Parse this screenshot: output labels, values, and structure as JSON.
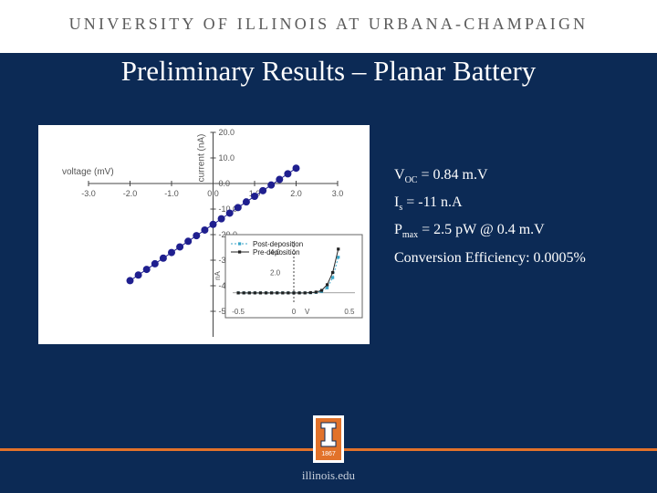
{
  "header": {
    "university": "UNIVERSITY OF ILLINOIS AT URBANA-CHAMPAIGN"
  },
  "slide": {
    "title": "Preliminary Results – Planar Battery"
  },
  "results": {
    "voc": {
      "symbol": "V",
      "sub": "OC",
      "text": " = 0.84 m.V"
    },
    "is": {
      "symbol": "I",
      "sub": "s",
      "text": " = -11 n.A"
    },
    "pmax": {
      "symbol": "P",
      "sub": "max",
      "text": " = 2.5 pW @ 0.4 m.V"
    },
    "efficiency": "Conversion Efficiency: 0.0005%"
  },
  "footer": {
    "site": "illinois.edu",
    "seal_year": "1867"
  },
  "colors": {
    "navy": "#0c2a55",
    "orange": "#e2722a",
    "series_marker": "#1f1f8f"
  },
  "chart_data": [
    {
      "type": "scatter",
      "xlabel": "voltage (mV)",
      "ylabel": "current (nA)",
      "xlim": [
        -3.0,
        3.0
      ],
      "ylim": [
        -60.0,
        20.0
      ],
      "xticks": [
        "-3.0",
        "-2.0",
        "-1.0",
        "0.0",
        "1.0",
        "2.0",
        "3.0"
      ],
      "yticks": [
        "20.0",
        "10.0",
        "0.0",
        "-10.0",
        "-20.0",
        "-30.0",
        "-40.0",
        "-50.0"
      ],
      "series": [
        {
          "x": [
            -2.0,
            -1.8,
            -1.6,
            -1.4,
            -1.2,
            -1.0,
            -0.8,
            -0.6,
            -0.4,
            -0.2,
            0.0,
            0.2,
            0.4,
            0.6,
            0.8,
            1.0,
            1.2,
            1.4,
            1.6,
            1.8,
            2.0
          ],
          "y": [
            -38.0,
            -35.8,
            -33.6,
            -31.4,
            -29.2,
            -27.0,
            -24.8,
            -22.6,
            -20.4,
            -18.2,
            -16.0,
            -13.8,
            -11.6,
            -9.4,
            -7.2,
            -5.0,
            -2.8,
            -0.6,
            1.6,
            3.8,
            6.0
          ]
        }
      ]
    },
    {
      "type": "line",
      "ylabel": "nA",
      "xlabel": "V",
      "xlim": [
        -0.55,
        0.55
      ],
      "ylim": [
        -1.0,
        5.0
      ],
      "xticks": [
        "-0.5",
        "0",
        "0.5"
      ],
      "yticks": [
        "4.0",
        "2.0"
      ],
      "legend": "top-left",
      "series": [
        {
          "name": "Post-deposition",
          "x": [
            -0.5,
            -0.45,
            -0.4,
            -0.35,
            -0.3,
            -0.25,
            -0.2,
            -0.15,
            -0.1,
            -0.05,
            0.0,
            0.05,
            0.1,
            0.15,
            0.2,
            0.25,
            0.3,
            0.35,
            0.4
          ],
          "y": [
            0,
            0,
            0,
            0,
            0,
            0,
            0,
            0,
            0,
            0,
            0,
            0,
            0,
            0.02,
            0.05,
            0.15,
            0.5,
            1.5,
            3.5
          ]
        },
        {
          "name": "Pre-deposition",
          "x": [
            -0.5,
            -0.45,
            -0.4,
            -0.35,
            -0.3,
            -0.25,
            -0.2,
            -0.15,
            -0.1,
            -0.05,
            0.0,
            0.05,
            0.1,
            0.15,
            0.2,
            0.25,
            0.3,
            0.35,
            0.4
          ],
          "y": [
            0,
            0,
            0,
            0,
            0,
            0,
            0,
            0,
            0,
            0,
            0,
            0,
            0,
            0.03,
            0.08,
            0.25,
            0.8,
            2.0,
            4.3
          ]
        }
      ]
    }
  ]
}
